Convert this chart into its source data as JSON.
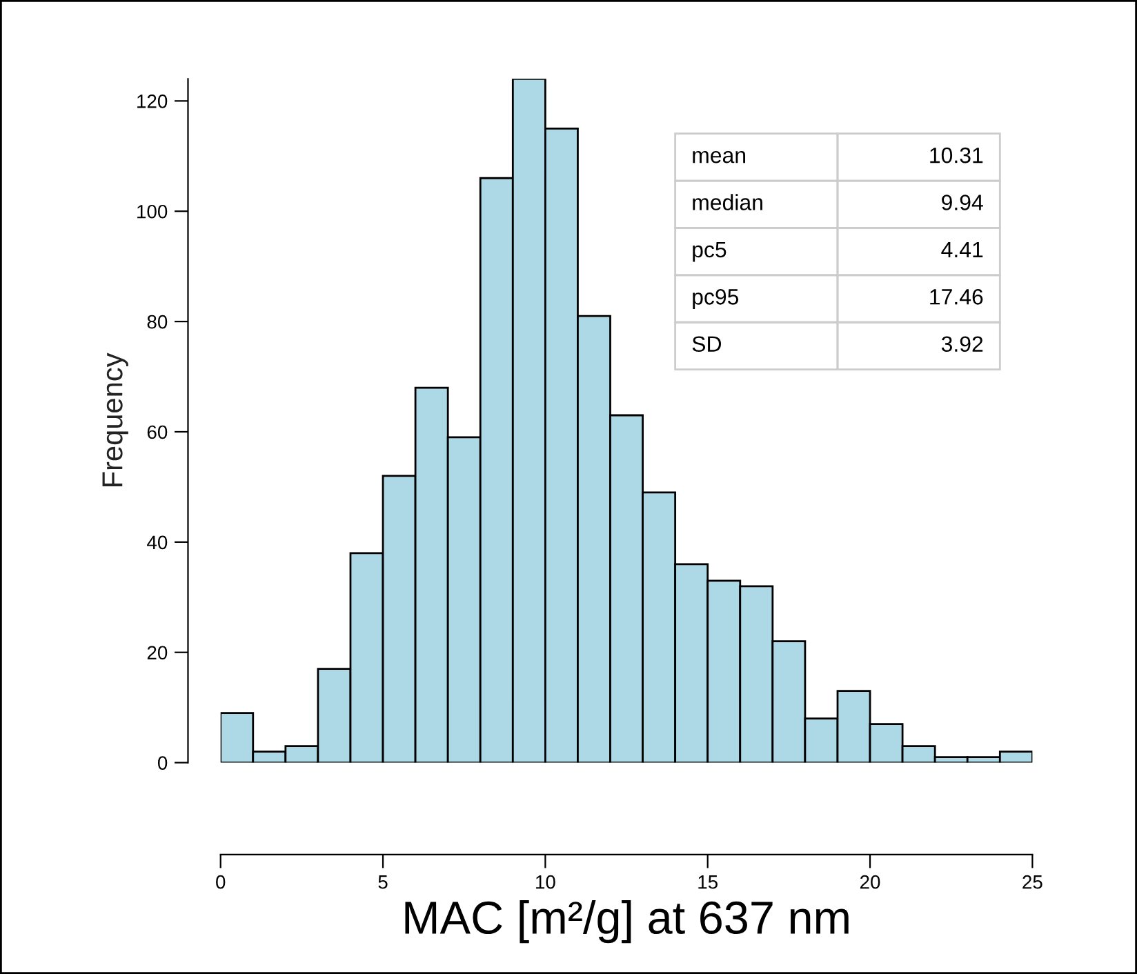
{
  "chart_data": {
    "type": "histogram",
    "xlabel": "MAC [m²/g] at 637 nm",
    "ylabel": "Frequency",
    "bins": [
      0,
      1,
      2,
      3,
      4,
      5,
      6,
      7,
      8,
      9,
      10,
      11,
      12,
      13,
      14,
      15,
      16,
      17,
      18,
      19,
      20,
      21,
      22,
      23,
      24,
      25
    ],
    "values": [
      9,
      2,
      3,
      17,
      38,
      52,
      68,
      59,
      106,
      124,
      115,
      81,
      63,
      49,
      36,
      33,
      32,
      22,
      8,
      13,
      7,
      3,
      1,
      1,
      2
    ],
    "color": "#add8e6",
    "xlim": [
      0,
      25
    ],
    "ylim": [
      0,
      124
    ],
    "xticks": [
      0,
      5,
      10,
      15,
      20,
      25
    ],
    "yticks": [
      0,
      20,
      40,
      60,
      80,
      100,
      120
    ],
    "grid": false,
    "annotations": [
      "mean 10.31",
      "median 9.94",
      "pc5 4.41",
      "pc95 17.46",
      "SD 3.92"
    ]
  }
}
